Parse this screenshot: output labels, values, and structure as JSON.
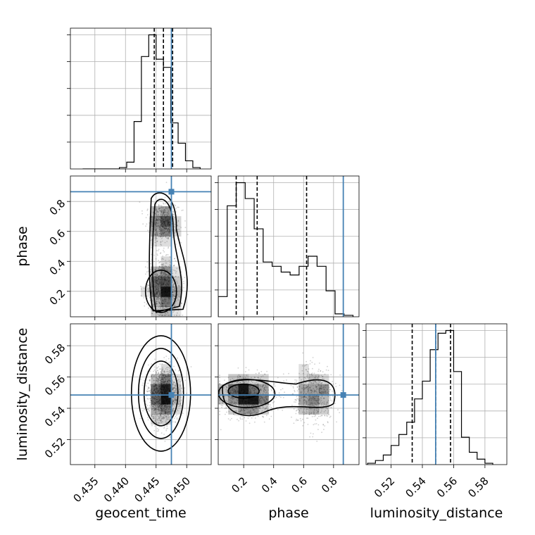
{
  "chart_data": {
    "type": "corner",
    "grid": true,
    "parameters": [
      "geocent_time",
      "phase",
      "luminosity_distance"
    ],
    "truths": {
      "geocent_time": 0.4475,
      "phase": 0.865,
      "luminosity_distance": 0.5485
    },
    "colors": {
      "truth": "#4682b4",
      "hist": "#000000",
      "grid": "#b0b0b0",
      "density": "#000000"
    },
    "axes": {
      "geocent_time": {
        "xlabel": "geocent_time",
        "range": [
          0.431,
          0.454
        ],
        "ticks": [
          0.435,
          0.44,
          0.445,
          0.45
        ],
        "tick_labels": [
          "0.435",
          "0.440",
          "0.445",
          "0.450"
        ]
      },
      "phase": {
        "xlabel": "phase",
        "ylabel": "phase",
        "range": [
          0.03,
          0.97
        ],
        "ticks": [
          0.2,
          0.4,
          0.6,
          0.8
        ],
        "tick_labels": [
          "0.2",
          "0.4",
          "0.6",
          "0.8"
        ]
      },
      "luminosity_distance": {
        "xlabel": "luminosity_distance",
        "ylabel": "luminosity_distance",
        "range": [
          0.504,
          0.594
        ],
        "ticks": [
          0.52,
          0.54,
          0.56,
          0.58
        ],
        "tick_labels": [
          "0.52",
          "0.54",
          "0.56",
          "0.58"
        ]
      }
    },
    "histograms": {
      "geocent_time": {
        "bin_edges": [
          0.433,
          0.4342,
          0.4354,
          0.4366,
          0.4378,
          0.439,
          0.4402,
          0.4414,
          0.4426,
          0.4438,
          0.445,
          0.4462,
          0.4474,
          0.4486,
          0.4498,
          0.451,
          0.4522
        ],
        "counts": [
          0,
          0,
          0,
          0,
          0,
          1,
          5,
          35,
          83,
          99,
          81,
          75,
          34,
          19,
          6,
          1
        ],
        "quantiles": [
          0.4447,
          0.4462,
          0.4477
        ]
      },
      "phase": {
        "bin_edges": [
          0.03,
          0.09,
          0.15,
          0.21,
          0.27,
          0.33,
          0.39,
          0.45,
          0.51,
          0.57,
          0.63,
          0.69,
          0.75,
          0.81,
          0.87,
          0.93
        ],
        "counts": [
          14,
          77,
          93,
          82,
          61,
          38,
          35,
          31,
          29,
          35,
          42,
          35,
          18,
          2,
          1
        ],
        "quantiles": [
          0.15,
          0.29,
          0.62
        ]
      },
      "luminosity_distance": {
        "bin_edges": [
          0.505,
          0.51,
          0.515,
          0.52,
          0.525,
          0.53,
          0.535,
          0.54,
          0.545,
          0.55,
          0.555,
          0.56,
          0.565,
          0.57,
          0.575,
          0.58,
          0.585
        ],
        "counts": [
          1,
          3,
          7,
          14,
          22,
          31,
          48,
          61,
          84,
          96,
          98,
          68,
          20,
          9,
          4,
          1
        ],
        "quantiles": [
          0.5335,
          0.5485,
          0.558
        ]
      }
    },
    "density_panels": [
      {
        "x": "geocent_time",
        "y": "phase"
      },
      {
        "x": "geocent_time",
        "y": "luminosity_distance"
      },
      {
        "x": "phase",
        "y": "luminosity_distance"
      }
    ]
  }
}
